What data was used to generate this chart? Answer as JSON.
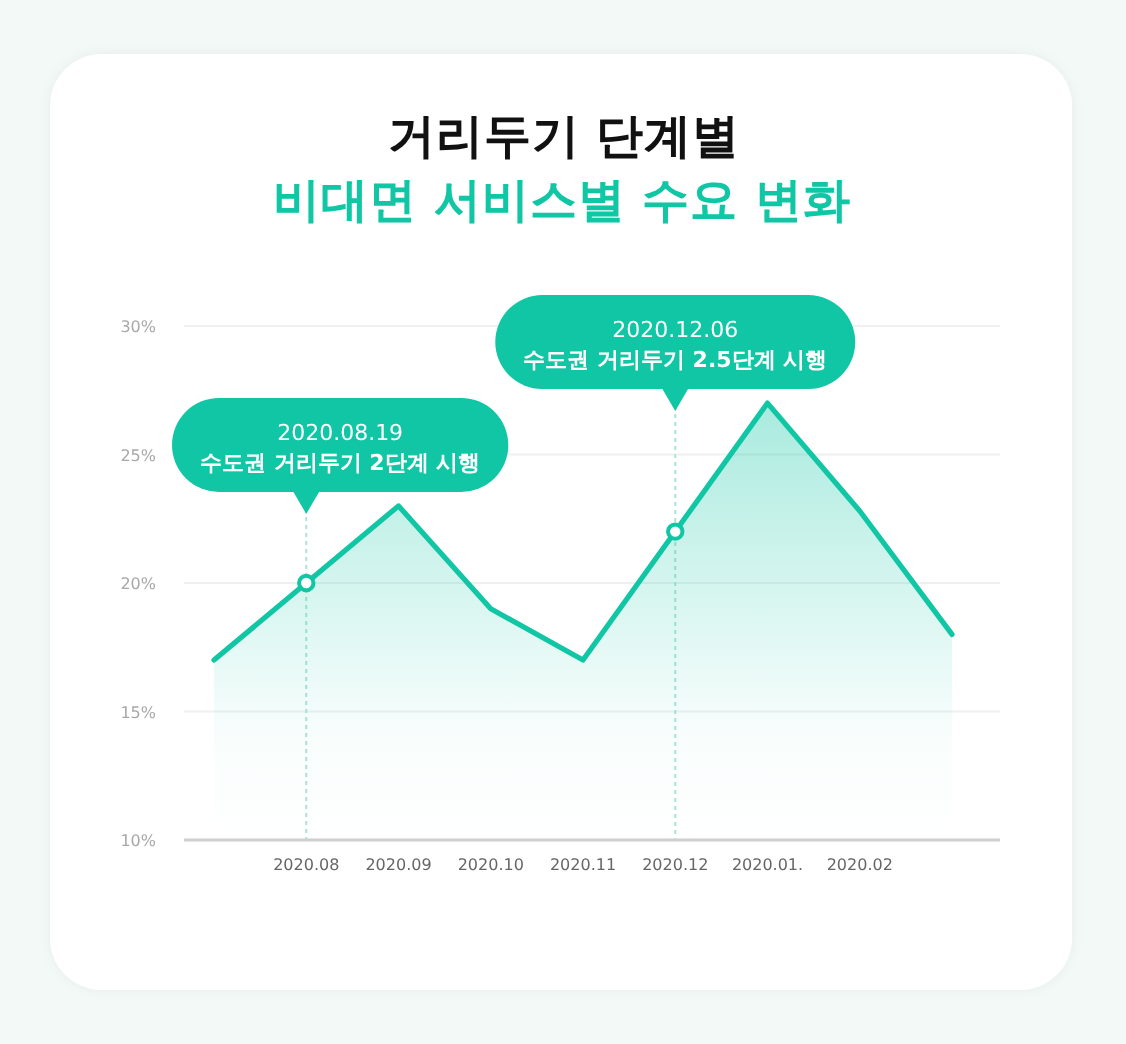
{
  "chart_data": {
    "type": "area",
    "title": "거리두기 단계별",
    "subtitle": "비대면 서비스별 수요 변화",
    "categories": [
      null,
      "2020.08",
      "2020.09",
      "2020.10",
      "2020.11",
      "2020.12",
      "2020.01.",
      "2020.02",
      null
    ],
    "series": [
      {
        "color": "#10c6a4",
        "values": [
          17,
          20,
          23,
          19,
          17,
          22,
          27,
          22.8,
          18
        ]
      }
    ],
    "ylim": [
      10,
      30
    ],
    "yticks": [
      {
        "value": 10,
        "label": "10%"
      },
      {
        "value": 15,
        "label": "15%"
      },
      {
        "value": 20,
        "label": "20%"
      },
      {
        "value": 25,
        "label": "25%"
      },
      {
        "value": 30,
        "label": "30%"
      }
    ],
    "grid": "y",
    "ref_lines": [
      {
        "axis": "x",
        "value": "2020.08",
        "label": "2020.08.19\n수도권 거리두기 2단계 시행",
        "color": "#a6e6d8",
        "line_style": "dashed"
      },
      {
        "axis": "x",
        "value": "2020.12",
        "label": "2020.12.06\n수도권 거리두기 2.5단계 시행",
        "color": "#a6e6d8",
        "line_style": "dashed"
      }
    ]
  }
}
